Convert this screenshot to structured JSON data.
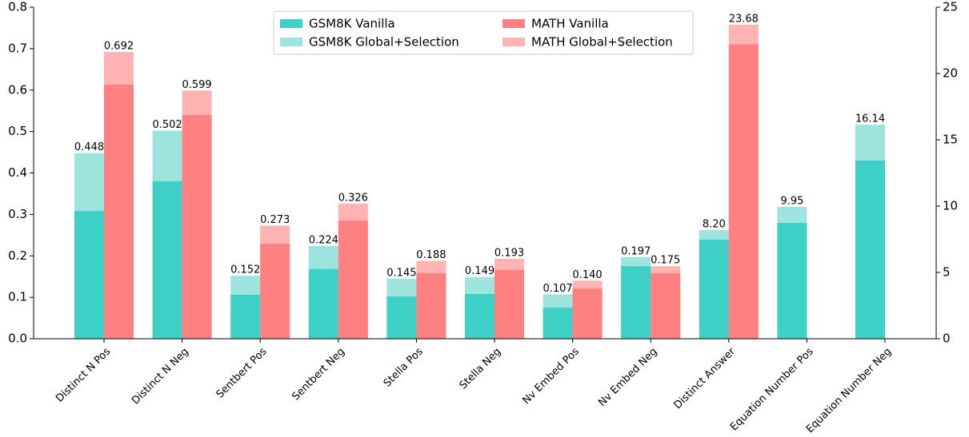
{
  "chart_data": {
    "type": "bar",
    "categories": [
      "Distinct N Pos",
      "Distinct N Neg",
      "Sentbert Pos",
      "Sentbert Neg",
      "Stella Pos",
      "Stella Neg",
      "Nv Embed Pos",
      "Nv Embed Neg",
      "Distinct Answer",
      "Equation Number Pos",
      "Equation Number Neg"
    ],
    "category_axis": [
      "y",
      "y",
      "y",
      "y",
      "y",
      "y",
      "y",
      "y",
      "y2",
      "y2",
      "y2"
    ],
    "series": [
      {
        "name": "GSM8K Vanilla",
        "color": "#3dd0c6",
        "group": "GSM8K",
        "values": [
          0.308,
          0.38,
          0.106,
          0.168,
          0.102,
          0.108,
          0.075,
          0.175,
          7.47,
          8.73,
          13.43
        ]
      },
      {
        "name": "GSM8K Global+Selection",
        "color": "#9de3de",
        "group": "GSM8K",
        "values": [
          0.448,
          0.502,
          0.152,
          0.224,
          0.145,
          0.149,
          0.107,
          0.197,
          8.2,
          9.95,
          16.14
        ],
        "value_labels": [
          "0.448",
          "0.502",
          "0.152",
          "0.224",
          "0.145",
          "0.149",
          "0.107",
          "0.197",
          "8.20",
          "9.95",
          "16.14"
        ]
      },
      {
        "name": "MATH Vanilla",
        "color": "#ff8080",
        "group": "MATH",
        "values": [
          0.613,
          0.54,
          0.229,
          0.285,
          0.158,
          0.166,
          0.121,
          0.158,
          22.2,
          null,
          null
        ]
      },
      {
        "name": "MATH Global+Selection",
        "color": "#ffb3b3",
        "group": "MATH",
        "values": [
          0.692,
          0.599,
          0.273,
          0.326,
          0.188,
          0.193,
          0.14,
          0.175,
          23.68,
          null,
          null
        ],
        "value_labels": [
          "0.692",
          "0.599",
          "0.273",
          "0.326",
          "0.188",
          "0.193",
          "0.140",
          "0.175",
          "23.68",
          null,
          null
        ]
      }
    ],
    "ylim": [
      0,
      0.8
    ],
    "yticks": [
      {
        "value": 0,
        "label": "0.0"
      },
      0.1,
      0.2,
      0.3,
      0.4,
      0.5,
      0.6,
      0.7,
      0.8
    ],
    "y2lim": [
      0,
      25
    ],
    "y2ticks": [
      0,
      5,
      10,
      15,
      20,
      25
    ],
    "legend": "upper center"
  }
}
